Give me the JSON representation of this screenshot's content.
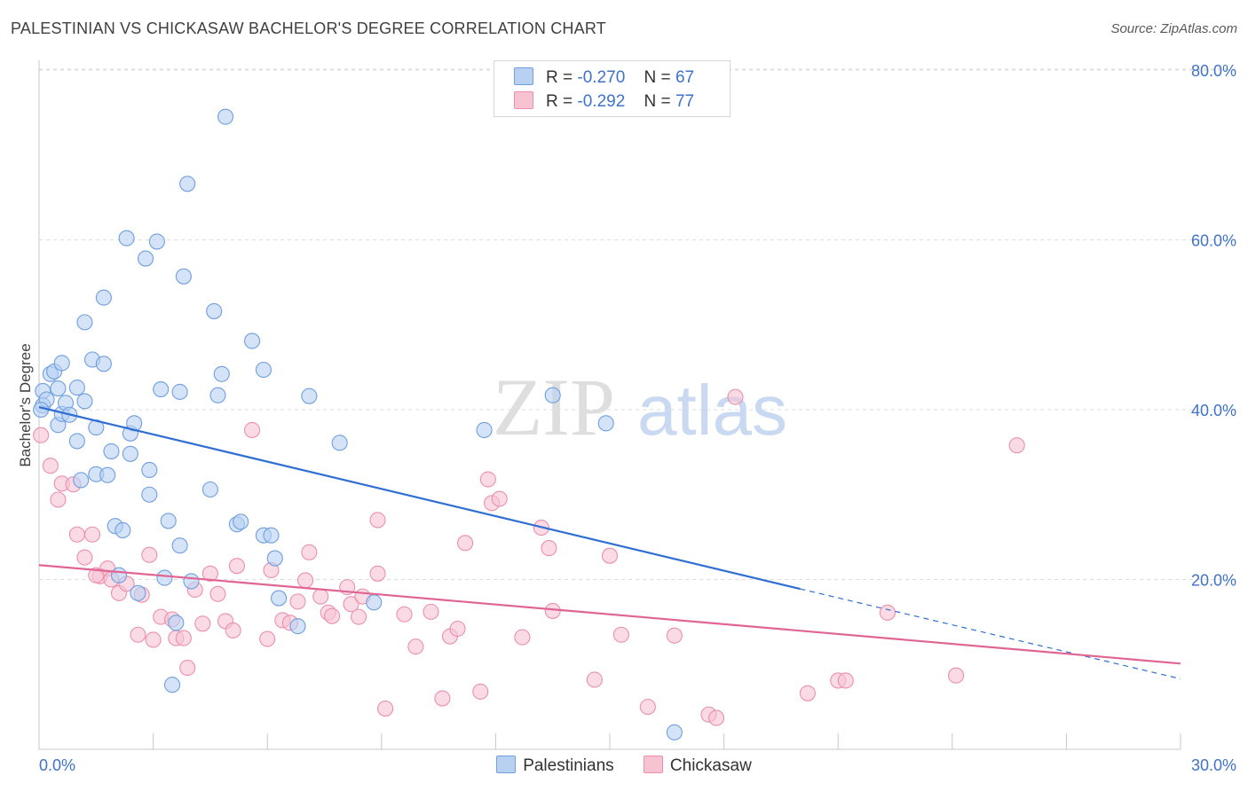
{
  "title": "PALESTINIAN VS CHICKASAW BACHELOR'S DEGREE CORRELATION CHART",
  "source": "Source: ZipAtlas.com",
  "watermark": {
    "zip": "ZIP",
    "atlas": "atlas"
  },
  "legend": {
    "r_label": "R =",
    "n_label": "N =",
    "rows": [
      {
        "name": "Palestinians",
        "r": "-0.270",
        "n": "67"
      },
      {
        "name": "Chickasaw",
        "r": "-0.292",
        "n": "77"
      }
    ]
  },
  "colors": {
    "blue_fill": "#b8d1f3",
    "blue_stroke": "#6f9fe0",
    "blue_line": "#2f6fd3",
    "pink_fill": "#f7c3d3",
    "pink_stroke": "#ec8fad",
    "pink_line": "#e06592",
    "axis_text": "#3f72c9",
    "grid": "#dcdcdc"
  },
  "chart_data": {
    "type": "scatter",
    "title": "PALESTINIAN VS CHICKASAW BACHELOR'S DEGREE CORRELATION CHART",
    "xlabel": "",
    "ylabel": "Bachelor's Degree",
    "xlim": [
      0,
      30
    ],
    "ylim": [
      0,
      80
    ],
    "x_tick_labels": [
      {
        "value": 0,
        "label": "0.0%"
      },
      {
        "value": 30,
        "label": "30.0%"
      }
    ],
    "y_tick_labels": [
      {
        "value": 20,
        "label": "20.0%"
      },
      {
        "value": 40,
        "label": "40.0%"
      },
      {
        "value": 60,
        "label": "60.0%"
      },
      {
        "value": 80,
        "label": "80.0%"
      }
    ],
    "series": [
      {
        "name": "Palestinians",
        "r": -0.27,
        "n": 67,
        "trend": {
          "x0": 0,
          "y0": 40.3,
          "x1": 20,
          "y1": 18.9,
          "dash_to_x": 30,
          "dash_to_y": 8.3
        },
        "points": [
          [
            0.1,
            42.2
          ],
          [
            0.1,
            40.5
          ],
          [
            0.2,
            41.2
          ],
          [
            0.3,
            44.2
          ],
          [
            0.4,
            44.5
          ],
          [
            0.5,
            38.2
          ],
          [
            0.5,
            42.5
          ],
          [
            0.6,
            45.5
          ],
          [
            0.6,
            39.5
          ],
          [
            0.7,
            40.8
          ],
          [
            0.8,
            39.4
          ],
          [
            1.0,
            36.3
          ],
          [
            1.0,
            42.6
          ],
          [
            1.1,
            31.7
          ],
          [
            1.2,
            41.0
          ],
          [
            1.2,
            50.3
          ],
          [
            1.4,
            45.9
          ],
          [
            1.5,
            37.9
          ],
          [
            1.5,
            32.4
          ],
          [
            1.7,
            45.4
          ],
          [
            1.7,
            53.2
          ],
          [
            1.8,
            32.3
          ],
          [
            1.9,
            35.1
          ],
          [
            2.0,
            26.3
          ],
          [
            2.1,
            20.5
          ],
          [
            2.2,
            25.8
          ],
          [
            2.3,
            60.2
          ],
          [
            2.4,
            37.2
          ],
          [
            2.4,
            34.8
          ],
          [
            2.5,
            38.4
          ],
          [
            2.6,
            18.4
          ],
          [
            2.8,
            57.8
          ],
          [
            2.9,
            30.0
          ],
          [
            2.9,
            32.9
          ],
          [
            3.1,
            59.8
          ],
          [
            3.2,
            42.4
          ],
          [
            3.3,
            20.2
          ],
          [
            3.4,
            26.9
          ],
          [
            3.5,
            7.6
          ],
          [
            3.6,
            14.9
          ],
          [
            3.7,
            24.0
          ],
          [
            3.7,
            42.1
          ],
          [
            3.8,
            55.7
          ],
          [
            3.9,
            66.6
          ],
          [
            4.0,
            19.8
          ],
          [
            4.5,
            30.6
          ],
          [
            4.6,
            51.6
          ],
          [
            4.7,
            41.7
          ],
          [
            4.8,
            44.2
          ],
          [
            4.9,
            74.5
          ],
          [
            5.2,
            26.5
          ],
          [
            5.3,
            26.8
          ],
          [
            5.6,
            48.1
          ],
          [
            5.9,
            44.7
          ],
          [
            5.9,
            25.2
          ],
          [
            6.1,
            25.2
          ],
          [
            6.2,
            22.5
          ],
          [
            6.3,
            17.8
          ],
          [
            6.8,
            14.5
          ],
          [
            7.1,
            41.6
          ],
          [
            7.9,
            36.1
          ],
          [
            8.8,
            17.3
          ],
          [
            11.7,
            37.6
          ],
          [
            13.5,
            41.7
          ],
          [
            14.9,
            38.4
          ],
          [
            16.7,
            2.0
          ],
          [
            0.05,
            40.0
          ]
        ]
      },
      {
        "name": "Chickasaw",
        "r": -0.292,
        "n": 77,
        "trend": {
          "x0": 0,
          "y0": 21.7,
          "x1": 30,
          "y1": 10.1
        },
        "points": [
          [
            0.05,
            37.0
          ],
          [
            0.3,
            33.4
          ],
          [
            0.5,
            29.4
          ],
          [
            0.6,
            31.3
          ],
          [
            0.9,
            31.2
          ],
          [
            1.0,
            25.3
          ],
          [
            1.2,
            22.6
          ],
          [
            1.4,
            25.3
          ],
          [
            1.6,
            20.4
          ],
          [
            1.8,
            21.3
          ],
          [
            1.9,
            20.0
          ],
          [
            2.1,
            18.4
          ],
          [
            2.3,
            19.5
          ],
          [
            2.6,
            13.5
          ],
          [
            2.7,
            18.2
          ],
          [
            2.9,
            22.9
          ],
          [
            3.0,
            12.9
          ],
          [
            3.2,
            15.6
          ],
          [
            3.5,
            15.3
          ],
          [
            3.6,
            13.1
          ],
          [
            3.8,
            13.1
          ],
          [
            3.9,
            9.6
          ],
          [
            4.1,
            18.8
          ],
          [
            4.3,
            14.8
          ],
          [
            4.5,
            20.7
          ],
          [
            4.7,
            18.3
          ],
          [
            4.9,
            15.1
          ],
          [
            5.1,
            14.0
          ],
          [
            5.2,
            21.6
          ],
          [
            5.6,
            37.6
          ],
          [
            6.0,
            13.0
          ],
          [
            6.1,
            21.1
          ],
          [
            6.4,
            15.2
          ],
          [
            6.6,
            14.9
          ],
          [
            6.8,
            17.4
          ],
          [
            7.0,
            19.9
          ],
          [
            7.1,
            23.2
          ],
          [
            7.4,
            18.0
          ],
          [
            7.6,
            16.1
          ],
          [
            7.7,
            15.7
          ],
          [
            8.1,
            19.1
          ],
          [
            8.2,
            17.1
          ],
          [
            8.4,
            15.6
          ],
          [
            8.5,
            18.0
          ],
          [
            8.9,
            20.7
          ],
          [
            8.9,
            27.0
          ],
          [
            9.1,
            4.8
          ],
          [
            9.6,
            15.9
          ],
          [
            9.9,
            12.1
          ],
          [
            10.3,
            16.2
          ],
          [
            10.6,
            6.0
          ],
          [
            10.8,
            13.3
          ],
          [
            11.0,
            14.2
          ],
          [
            11.2,
            24.3
          ],
          [
            11.6,
            6.8
          ],
          [
            11.8,
            31.8
          ],
          [
            11.9,
            29.0
          ],
          [
            12.1,
            29.5
          ],
          [
            12.7,
            13.2
          ],
          [
            13.2,
            26.1
          ],
          [
            13.4,
            23.7
          ],
          [
            13.5,
            16.3
          ],
          [
            14.6,
            8.2
          ],
          [
            15.0,
            22.8
          ],
          [
            15.3,
            13.5
          ],
          [
            16.0,
            5.0
          ],
          [
            16.7,
            13.4
          ],
          [
            17.6,
            4.1
          ],
          [
            17.8,
            3.7
          ],
          [
            18.3,
            41.5
          ],
          [
            20.2,
            6.6
          ],
          [
            21.0,
            8.1
          ],
          [
            21.2,
            8.1
          ],
          [
            22.3,
            16.1
          ],
          [
            24.1,
            8.7
          ],
          [
            25.7,
            35.8
          ],
          [
            1.5,
            20.5
          ]
        ]
      }
    ]
  }
}
